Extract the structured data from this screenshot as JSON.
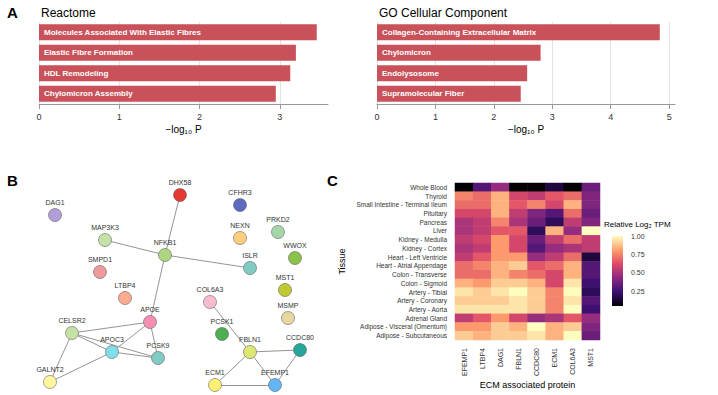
{
  "chart_data": [
    {
      "type": "bar",
      "annotation": "A",
      "title": "Reactome",
      "orientation": "horizontal",
      "categories": [
        "Molecules Associated With Elastic Fibres",
        "Elastic Fibre Formation",
        "HDL Remodeling",
        "Chylomicron Assembly"
      ],
      "values": [
        3.46,
        3.2,
        3.13,
        2.95
      ],
      "color": "#c9525a",
      "xlabel": "−log₁₀ P",
      "xlim": [
        0,
        3.6
      ],
      "xticks": [
        0,
        1,
        2,
        3
      ],
      "grid": true
    },
    {
      "type": "bar",
      "title": "GO Cellular Component",
      "orientation": "horizontal",
      "categories": [
        "Collagen-Containing Extracellular Matrix",
        "Chylomicron",
        "Endolysosome",
        "Supramolecular Fiber"
      ],
      "values": [
        4.84,
        2.8,
        2.57,
        2.46
      ],
      "color": "#c9525a",
      "xlabel": "−log₁₀ P",
      "xlim": [
        0,
        5.1
      ],
      "xticks": [
        0,
        1,
        2,
        3,
        4,
        5
      ],
      "grid": true
    },
    {
      "type": "graph",
      "annotation": "B",
      "nodes": [
        {
          "label": "DAG1",
          "color": "#b39ddb"
        },
        {
          "label": "DHX58",
          "color": "#e53935"
        },
        {
          "label": "CFHR3",
          "color": "#5c6bc0"
        },
        {
          "label": "MAP3K3",
          "color": "#c5e1a5"
        },
        {
          "label": "NEXN",
          "color": "#ffcc80"
        },
        {
          "label": "PRKD2",
          "color": "#a5d6a7"
        },
        {
          "label": "WWOX",
          "color": "#8bc34a"
        },
        {
          "label": "SMPD1",
          "color": "#ef9a9a"
        },
        {
          "label": "NFKB1",
          "color": "#aed581"
        },
        {
          "label": "ISLR",
          "color": "#80cbc4"
        },
        {
          "label": "LTBP4",
          "color": "#ffab91"
        },
        {
          "label": "MST1",
          "color": "#c0ca33"
        },
        {
          "label": "COL6A3",
          "color": "#f8bbd0"
        },
        {
          "label": "APOE",
          "color": "#f48fb1"
        },
        {
          "label": "MSMP",
          "color": "#e6d6a0"
        },
        {
          "label": "CELSR2",
          "color": "#c5e1a5"
        },
        {
          "label": "PCSK1",
          "color": "#4caf50"
        },
        {
          "label": "PCSK9",
          "color": "#80cbc4"
        },
        {
          "label": "APOC3",
          "color": "#80deea"
        },
        {
          "label": "FBLN1",
          "color": "#dce775"
        },
        {
          "label": "CCDC80",
          "color": "#26a69a"
        },
        {
          "label": "GALNT2",
          "color": "#fff59d"
        },
        {
          "label": "ECM1",
          "color": "#fff176"
        },
        {
          "label": "EFEMP1",
          "color": "#64b5f6"
        }
      ],
      "edges": [
        [
          "NFKB1",
          "DHX58"
        ],
        [
          "NFKB1",
          "MAP3K3"
        ],
        [
          "NFKB1",
          "ISLR"
        ],
        [
          "NFKB1",
          "APOE"
        ],
        [
          "APOE",
          "CELSR2"
        ],
        [
          "APOE",
          "PCSK9"
        ],
        [
          "APOE",
          "APOC3"
        ],
        [
          "CELSR2",
          "PCSK9"
        ],
        [
          "CELSR2",
          "APOC3"
        ],
        [
          "CELSR2",
          "GALNT2"
        ],
        [
          "APOC3",
          "PCSK9"
        ],
        [
          "APOC3",
          "GALNT2"
        ],
        [
          "FBLN1",
          "COL6A3"
        ],
        [
          "FBLN1",
          "ECM1"
        ],
        [
          "FBLN1",
          "EFEMP1"
        ],
        [
          "FBLN1",
          "CCDC80"
        ],
        [
          "EFEMP1",
          "ECM1"
        ],
        [
          "EFEMP1",
          "CCDC80"
        ]
      ]
    },
    {
      "type": "heatmap",
      "annotation": "C",
      "xlabel": "ECM associated protein",
      "ylabel": "Tissue",
      "categories": [
        "EFEMP1",
        "LTBP4",
        "DAG1",
        "FBLN1",
        "CCDC80",
        "ECM1",
        "COL6A3",
        "MST1"
      ],
      "rows": [
        "Whole Blood",
        "Thyroid",
        "Small Intestine - Terminal Ileum",
        "Pituitary",
        "Pancreas",
        "Liver",
        "Kidney - Medulla",
        "Kidney - Cortex",
        "Heart - Left Ventricle",
        "Heart - Atrial Appendage",
        "Colon - Transverse",
        "Colon - Sigmoid",
        "Artery - Tibial",
        "Artery - Coronary",
        "Artery - Aorta",
        "Adrenal Gland",
        "Adipose - Visceral (Omentum)",
        "Adipose - Subcutaneous"
      ],
      "cells": [
        [
          0.05,
          0.3,
          0.45,
          0.05,
          0.05,
          0.15,
          0.05,
          0.35
        ],
        [
          0.75,
          0.7,
          0.85,
          0.6,
          0.55,
          0.65,
          0.7,
          0.4
        ],
        [
          0.7,
          0.7,
          0.85,
          0.65,
          0.75,
          0.6,
          0.85,
          0.4
        ],
        [
          0.6,
          0.6,
          0.85,
          0.55,
          0.4,
          0.3,
          0.7,
          0.35
        ],
        [
          0.5,
          0.55,
          0.75,
          0.5,
          0.35,
          0.2,
          0.55,
          0.4
        ],
        [
          0.5,
          0.55,
          0.65,
          0.65,
          0.2,
          0.85,
          0.45,
          1.0
        ],
        [
          0.55,
          0.6,
          0.8,
          0.6,
          0.35,
          0.55,
          0.7,
          0.55
        ],
        [
          0.5,
          0.55,
          0.8,
          0.6,
          0.3,
          0.45,
          0.5,
          0.55
        ],
        [
          0.55,
          0.65,
          0.8,
          0.8,
          0.45,
          0.55,
          0.7,
          0.15
        ],
        [
          0.7,
          0.75,
          0.85,
          0.9,
          0.65,
          0.7,
          0.85,
          0.3
        ],
        [
          0.7,
          0.7,
          0.85,
          0.75,
          0.7,
          0.6,
          0.85,
          0.3
        ],
        [
          0.85,
          0.8,
          0.9,
          0.9,
          0.85,
          0.6,
          0.95,
          0.25
        ],
        [
          0.95,
          0.9,
          0.95,
          1.0,
          0.9,
          0.75,
          1.0,
          0.2
        ],
        [
          0.9,
          0.9,
          0.9,
          0.95,
          0.9,
          0.75,
          0.95,
          0.3
        ],
        [
          0.95,
          0.95,
          0.95,
          0.95,
          0.9,
          0.75,
          1.0,
          0.25
        ],
        [
          0.55,
          0.65,
          0.8,
          0.6,
          0.45,
          0.5,
          0.65,
          0.45
        ],
        [
          0.8,
          0.8,
          0.9,
          0.85,
          1.0,
          0.85,
          0.9,
          0.4
        ],
        [
          0.9,
          0.85,
          0.9,
          0.9,
          0.95,
          0.85,
          1.0,
          0.35
        ]
      ],
      "colorbar": {
        "title": "Relative Log₂ TPM",
        "range": [
          0.05,
          1.0
        ],
        "ticks": [
          0.25,
          {
            "value": 0.5,
            "label": "0.50"
          },
          0.75,
          {
            "value": 1,
            "label": "1.00"
          }
        ]
      }
    }
  ]
}
